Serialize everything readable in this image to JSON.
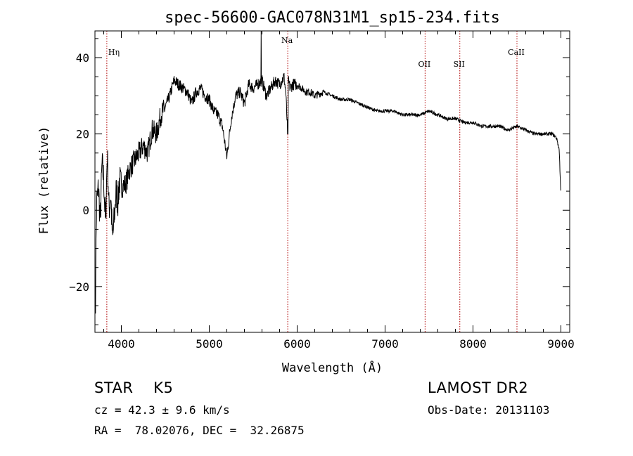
{
  "chart_data": {
    "type": "line",
    "title": "spec-56600-GAC078N31M1_sp15-234.fits",
    "xlabel": "Wavelength (Å)",
    "ylabel": "Flux (relative)",
    "xlim": [
      3700,
      9100
    ],
    "ylim": [
      -32,
      47
    ],
    "xticks": [
      4000,
      5000,
      6000,
      7000,
      8000,
      9000
    ],
    "yticks": [
      -20,
      0,
      20,
      40
    ],
    "grid": false,
    "series": [
      {
        "x": [
          3700,
          3720,
          3740,
          3760,
          3780,
          3800,
          3820,
          3840,
          3860,
          3880,
          3900,
          3920,
          3940,
          3960,
          3980,
          4000,
          4050,
          4100,
          4150,
          4200,
          4250,
          4300,
          4350,
          4400,
          4450,
          4500,
          4550,
          4600,
          4650,
          4700,
          4750,
          4800,
          4850,
          4900,
          4950,
          5000,
          5050,
          5100,
          5150,
          5200,
          5250,
          5300,
          5350,
          5400,
          5450,
          5500,
          5550,
          5600,
          5650,
          5700,
          5750,
          5800,
          5850,
          5870,
          5890,
          5900,
          5920,
          5950,
          6000,
          6050,
          6100,
          6150,
          6200,
          6300,
          6400,
          6500,
          6600,
          6700,
          6800,
          6900,
          7000,
          7100,
          7200,
          7300,
          7400,
          7500,
          7600,
          7700,
          7800,
          7900,
          8000,
          8100,
          8200,
          8300,
          8400,
          8500,
          8600,
          8700,
          8800,
          8900,
          8950,
          8980,
          9000
        ],
        "y": [
          -27,
          2,
          6,
          -3,
          12,
          8,
          -4,
          15,
          0,
          4,
          -8,
          -2,
          5,
          2,
          8,
          6,
          7,
          11,
          13,
          15,
          17,
          15,
          21,
          20,
          25,
          27,
          30,
          34,
          33,
          32,
          31,
          28,
          31,
          32,
          30,
          29,
          26,
          25,
          22,
          14,
          24,
          30,
          31,
          28,
          33,
          32,
          33,
          34,
          30,
          32,
          34,
          33,
          35,
          31,
          21,
          34,
          32,
          33,
          33,
          32,
          31,
          31,
          30,
          31,
          30,
          29,
          29,
          28,
          27,
          26,
          26,
          26,
          25,
          25,
          25,
          26,
          25,
          24,
          24,
          23,
          23,
          22,
          22,
          22,
          21,
          22,
          21,
          20,
          20,
          20,
          19,
          16,
          4
        ]
      }
    ],
    "annotations": [
      {
        "label": "Hη",
        "x": 3835
      },
      {
        "label": "Na",
        "x": 5893
      },
      {
        "label": "OII",
        "x": 7455
      },
      {
        "label": "SII",
        "x": 7850
      },
      {
        "label": "CaII",
        "x": 8500
      }
    ]
  },
  "info": {
    "class_line": "STAR    K5",
    "cz_line": "cz = 42.3 ± 9.6 km/s",
    "radec_line": "RA =  78.02076, DEC =  32.26875",
    "survey": "LAMOST DR2",
    "obs_date": "Obs-Date: 20131103"
  }
}
